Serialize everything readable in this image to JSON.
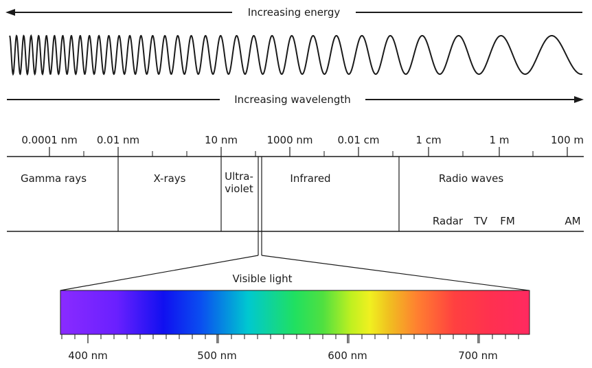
{
  "arrows": {
    "energy_label": "Increasing energy",
    "wavelength_label": "Increasing wavelength"
  },
  "scale_ticks": [
    "0.0001 nm",
    "0.01 nm",
    "10 nm",
    "1000 nm",
    "0.01 cm",
    "1 cm",
    "1 m",
    "100 m"
  ],
  "regions": {
    "gamma": "Gamma rays",
    "xrays": "X-rays",
    "uv_line1": "Ultra-",
    "uv_line2": "violet",
    "infrared": "Infrared",
    "radio": "Radio waves"
  },
  "radio_bands": [
    "Radar",
    "TV",
    "FM",
    "AM"
  ],
  "visible": {
    "label": "Visible light",
    "ticks": [
      "400 nm",
      "500 nm",
      "600 nm",
      "700 nm"
    ]
  },
  "colors": {
    "line": "#1a1a1a",
    "spectrum_stops": [
      "#8a2bff",
      "#5a1fff",
      "#1010f0",
      "#0a4ff0",
      "#00c8d0",
      "#20e060",
      "#50e040",
      "#c0f020",
      "#f0f020",
      "#f0c020",
      "#ff8030",
      "#ff4040",
      "#ff3050",
      "#ff2a60"
    ]
  }
}
